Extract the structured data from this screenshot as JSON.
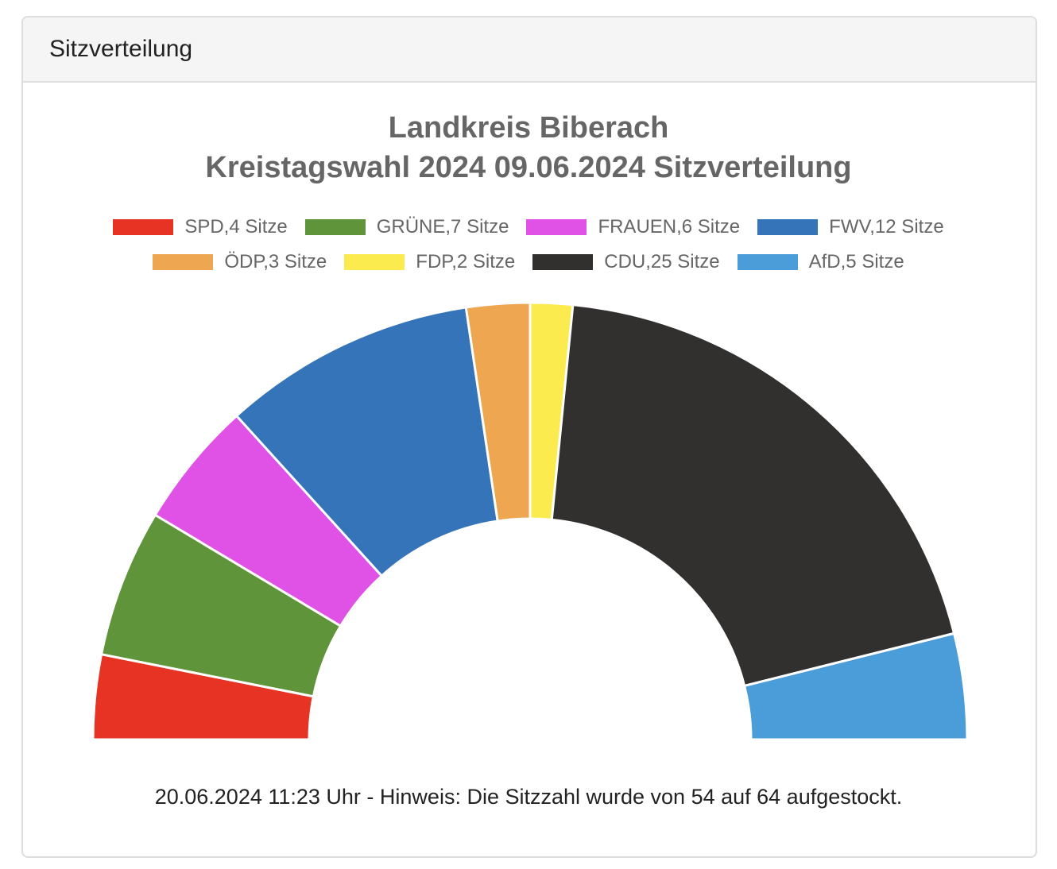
{
  "panel": {
    "heading": "Sitzverteilung"
  },
  "chart_data": {
    "type": "pie",
    "variant": "semicircle-donut",
    "title": "Landkreis Biberach",
    "subtitle": "Kreistagswahl 2024 09.06.2024 Sitzverteilung",
    "unit": "Sitze",
    "total": 64,
    "series": [
      {
        "party": "SPD",
        "seats": 4,
        "label": "SPD,4 Sitze",
        "color": "#e63324"
      },
      {
        "party": "GRÜNE",
        "seats": 7,
        "label": "GRÜNE,7 Sitze",
        "color": "#5f943a"
      },
      {
        "party": "FRAUEN",
        "seats": 6,
        "label": "FRAUEN,6 Sitze",
        "color": "#e052e5"
      },
      {
        "party": "FWV",
        "seats": 12,
        "label": "FWV,12 Sitze",
        "color": "#3574b8"
      },
      {
        "party": "ÖDP",
        "seats": 3,
        "label": "ÖDP,3 Sitze",
        "color": "#efa651"
      },
      {
        "party": "FDP",
        "seats": 2,
        "label": "FDP,2 Sitze",
        "color": "#fbeb4f"
      },
      {
        "party": "CDU",
        "seats": 25,
        "label": "CDU,25 Sitze",
        "color": "#32302f"
      },
      {
        "party": "AfD",
        "seats": 5,
        "label": "AfD,5 Sitze",
        "color": "#4b9dda"
      }
    ],
    "legend_position": "top"
  },
  "footer": {
    "note": "20.06.2024 11:23 Uhr - Hinweis: Die Sitzzahl wurde von 54 auf 64 aufgestockt."
  }
}
